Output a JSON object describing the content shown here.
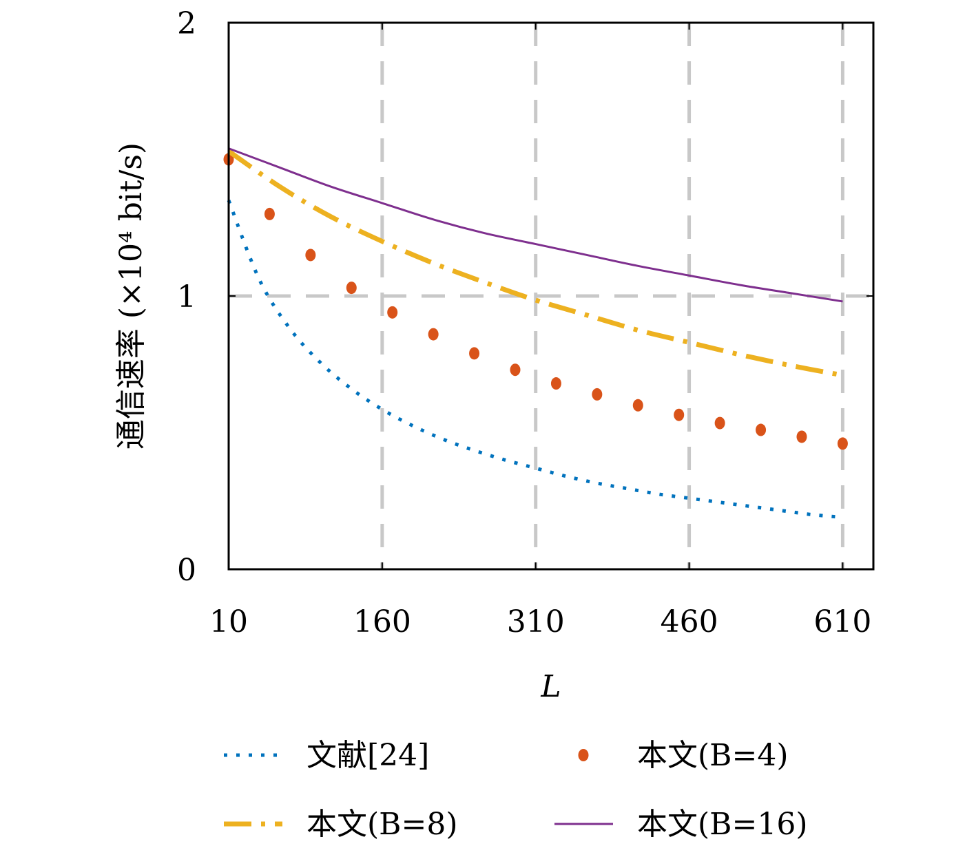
{
  "chart_data": {
    "type": "line",
    "xlabel": "L",
    "ylabel": "通信速率 (×10⁴ bit/s)",
    "xlim": [
      10,
      640
    ],
    "ylim": [
      0,
      2
    ],
    "x_ticks": [
      "10",
      "160",
      "310",
      "460",
      "610"
    ],
    "y_ticks": [
      "0",
      "1",
      "2"
    ],
    "grid": true,
    "legend_position": "bottom",
    "series": [
      {
        "name": "文献[24]",
        "style": "dotted",
        "color": "#0072BD",
        "x": [
          10,
          40,
          70,
          100,
          130,
          160,
          190,
          220,
          250,
          280,
          310,
          340,
          370,
          400,
          430,
          460,
          490,
          520,
          550,
          580,
          610
        ],
        "values": [
          1.35,
          1.06,
          0.88,
          0.755,
          0.66,
          0.585,
          0.525,
          0.475,
          0.435,
          0.4,
          0.37,
          0.34,
          0.315,
          0.295,
          0.275,
          0.26,
          0.245,
          0.23,
          0.215,
          0.2,
          0.19
        ]
      },
      {
        "name": "本文(B=4)",
        "style": "markers",
        "color": "#D95319",
        "x": [
          10,
          50,
          90,
          130,
          170,
          210,
          250,
          290,
          330,
          370,
          410,
          450,
          490,
          530,
          570,
          610
        ],
        "values": [
          1.5,
          1.3,
          1.15,
          1.03,
          0.94,
          0.86,
          0.79,
          0.73,
          0.68,
          0.64,
          0.6,
          0.565,
          0.535,
          0.51,
          0.485,
          0.46
        ]
      },
      {
        "name": "本文(B=8)",
        "style": "dashdot",
        "color": "#EDB120",
        "x": [
          10,
          60,
          110,
          160,
          210,
          260,
          310,
          360,
          410,
          460,
          510,
          560,
          610
        ],
        "values": [
          1.53,
          1.4,
          1.29,
          1.2,
          1.12,
          1.05,
          0.985,
          0.93,
          0.875,
          0.83,
          0.785,
          0.745,
          0.71
        ]
      },
      {
        "name": "本文(B=16)",
        "style": "solid",
        "color": "#7E2F8E",
        "x": [
          10,
          60,
          110,
          160,
          210,
          260,
          310,
          360,
          410,
          460,
          510,
          560,
          610
        ],
        "values": [
          1.54,
          1.47,
          1.4,
          1.34,
          1.28,
          1.23,
          1.19,
          1.15,
          1.11,
          1.075,
          1.04,
          1.01,
          0.98
        ]
      }
    ]
  }
}
